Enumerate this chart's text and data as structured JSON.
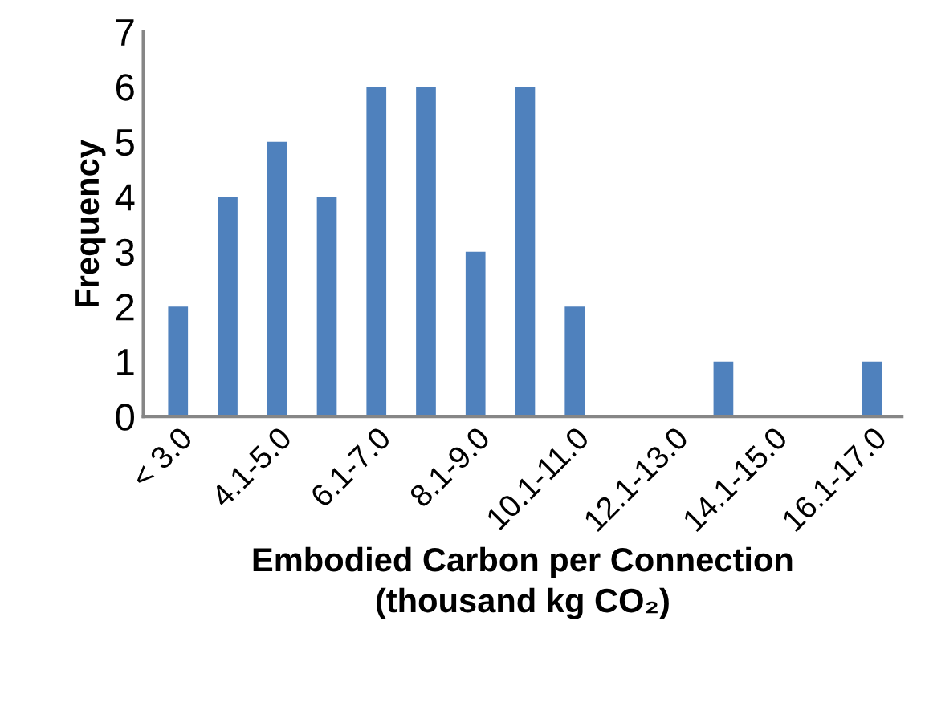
{
  "chart_data": {
    "type": "bar",
    "xlabel": "Embodied Carbon per Connection\n(thousand kg CO₂)",
    "ylabel": "Frequency",
    "categories": [
      "< 3.0",
      null,
      "4.1-5.0",
      null,
      "6.1-7.0",
      null,
      "8.1-9.0",
      null,
      "10.1-11.0",
      null,
      "12.1-13.0",
      null,
      "14.1-15.0",
      null,
      "16.1-17.0"
    ],
    "values": [
      2,
      4,
      5,
      4,
      6,
      6,
      3,
      6,
      2,
      0,
      0,
      1,
      0,
      0,
      1
    ],
    "color": "#4f81bd",
    "ylim": [
      0,
      7
    ],
    "yticks": [
      0,
      1,
      2,
      3,
      4,
      5,
      6,
      7
    ],
    "grid": false,
    "legend": false
  }
}
